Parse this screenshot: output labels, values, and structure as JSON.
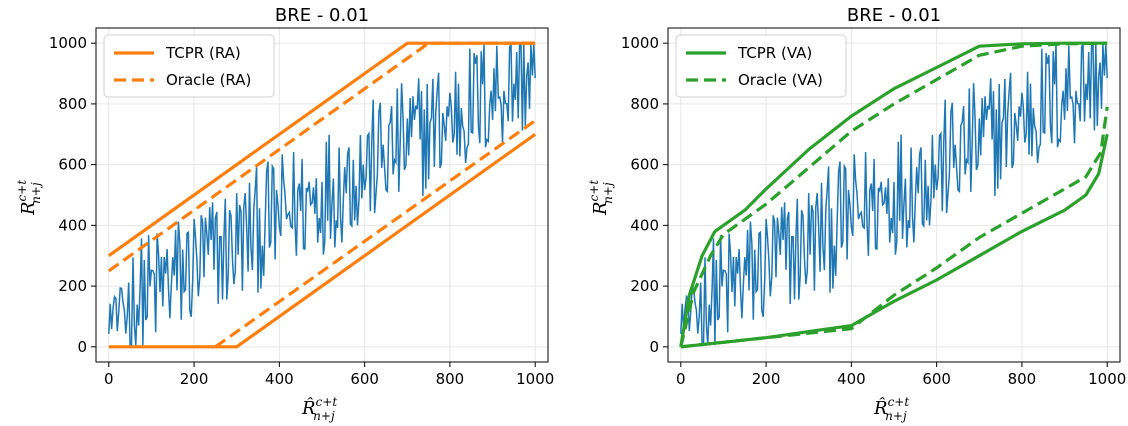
{
  "chart_data": [
    {
      "type": "line",
      "title": "BRE - 0.01",
      "xlabel_base": "R̂",
      "xlabel_sup": "c+t",
      "xlabel_sub": "n+j",
      "ylabel_base": "R",
      "ylabel_sup": "c+t",
      "ylabel_sub": "n+j",
      "xlim": [
        -30,
        1030
      ],
      "ylim": [
        -50,
        1050
      ],
      "xticks": [
        0,
        200,
        400,
        600,
        800,
        1000
      ],
      "yticks": [
        0,
        200,
        400,
        600,
        800,
        1000
      ],
      "grid": true,
      "legend_position": "top-left",
      "colors": {
        "band": "#ff7f0e",
        "trace": "#1f77b4"
      },
      "series": [
        {
          "name": "TCPR (RA)",
          "style": "solid",
          "upper": {
            "x": [
              0,
              700,
              1000
            ],
            "y": [
              300,
              1000,
              1000
            ]
          },
          "lower": {
            "x": [
              0,
              300,
              1000
            ],
            "y": [
              0,
              0,
              700
            ]
          }
        },
        {
          "name": "Oracle (RA)",
          "style": "dashed",
          "upper": {
            "x": [
              0,
              750,
              1000
            ],
            "y": [
              250,
              1000,
              1000
            ]
          },
          "lower": {
            "x": [
              250,
              1000
            ],
            "y": [
              0,
              745
            ]
          }
        }
      ]
    },
    {
      "type": "line",
      "title": "BRE - 0.01",
      "xlabel_base": "R̂",
      "xlabel_sup": "c+t",
      "xlabel_sub": "n+j",
      "ylabel_base": "R",
      "ylabel_sup": "c+t",
      "ylabel_sub": "n+j",
      "xlim": [
        -30,
        1030
      ],
      "ylim": [
        -50,
        1050
      ],
      "xticks": [
        0,
        200,
        400,
        600,
        800,
        1000
      ],
      "yticks": [
        0,
        200,
        400,
        600,
        800,
        1000
      ],
      "grid": true,
      "legend_position": "top-left",
      "colors": {
        "band": "#2ca02c",
        "trace": "#1f77b4"
      },
      "series": [
        {
          "name": "TCPR (VA)",
          "style": "solid",
          "upper": {
            "x": [
              0,
              20,
              50,
              80,
              150,
              200,
              300,
              400,
              500,
              600,
              700,
              800,
              900,
              1000
            ],
            "y": [
              0,
              170,
              300,
              380,
              450,
              520,
              650,
              760,
              850,
              920,
              990,
              998,
              1000,
              1000
            ]
          },
          "lower": {
            "x": [
              0,
              100,
              200,
              300,
              400,
              500,
              600,
              700,
              800,
              900,
              950,
              980,
              1000
            ],
            "y": [
              0,
              15,
              30,
              50,
              70,
              150,
              220,
              300,
              380,
              450,
              500,
              570,
              700
            ]
          }
        },
        {
          "name": "Oracle (VA)",
          "style": "dashed",
          "upper": {
            "x": [
              0,
              30,
              70,
              100,
              150,
              200,
              300,
              400,
              500,
              600,
              700,
              800,
              900,
              1000
            ],
            "y": [
              0,
              180,
              300,
              370,
              420,
              470,
              590,
              710,
              800,
              880,
              960,
              990,
              998,
              1000
            ]
          },
          "lower": {
            "x": [
              0,
              100,
              200,
              300,
              400,
              500,
              600,
              700,
              800,
              900,
              950,
              985,
              1000
            ],
            "y": [
              0,
              15,
              30,
              45,
              60,
              170,
              260,
              360,
              440,
              520,
              560,
              640,
              790
            ]
          }
        }
      ]
    }
  ]
}
